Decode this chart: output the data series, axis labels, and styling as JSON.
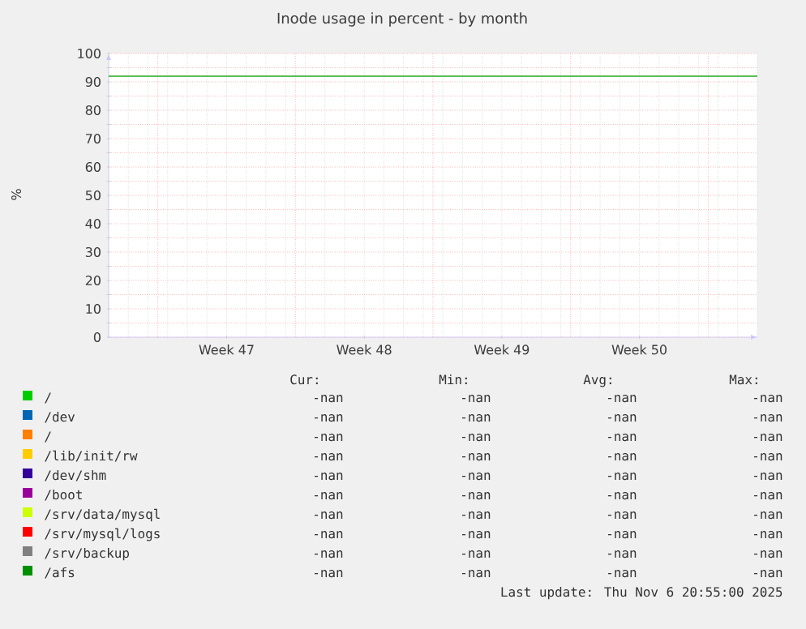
{
  "chart_data": {
    "type": "line",
    "title": "Inode usage in percent - by month",
    "ylabel": "%",
    "categories": [
      null,
      null,
      null,
      null,
      null,
      null,
      "Week 47",
      null,
      null,
      null,
      null,
      null,
      null,
      "Week 48",
      null,
      null,
      null,
      null,
      null,
      null,
      "Week 49",
      null,
      null,
      null,
      null,
      null,
      null,
      "Week 50",
      null,
      null,
      null,
      null,
      null,
      null
    ],
    "ylim": [
      0,
      100
    ],
    "yticks": [
      0,
      10,
      20,
      30,
      40,
      50,
      60,
      70,
      80,
      90,
      100
    ],
    "grid": true,
    "legend": "bottom",
    "ref_lines": [
      {
        "axis": "y",
        "value": 92,
        "color": "#22aa22"
      }
    ],
    "annotations": [
      "Cur:",
      "Min:",
      "Avg:",
      "Max:",
      "-nan",
      "-nan",
      "-nan",
      "-nan",
      "-nan",
      "-nan",
      "-nan",
      "-nan",
      "-nan",
      "-nan",
      "-nan",
      "-nan",
      "-nan",
      "-nan",
      "-nan",
      "-nan",
      "-nan",
      "-nan",
      "-nan",
      "-nan",
      "-nan",
      "-nan",
      "-nan",
      "-nan",
      "-nan",
      "-nan",
      "-nan",
      "-nan",
      "-nan",
      "-nan",
      "-nan",
      "-nan",
      "-nan",
      "-nan",
      "-nan",
      "-nan",
      "-nan",
      "-nan",
      "-nan",
      "-nan",
      "Last update:  Thu Nov  6 20:55:00 2025"
    ],
    "series": [
      {
        "name": "/",
        "color": "#00cc00",
        "values": [
          null,
          null,
          null,
          null,
          null,
          null,
          null,
          null,
          null,
          null,
          null,
          null,
          null,
          null,
          null,
          null,
          null,
          null,
          null,
          null,
          null,
          null,
          null,
          null,
          null,
          null,
          null,
          null,
          null,
          null,
          null,
          null,
          null,
          null
        ]
      },
      {
        "name": "/dev",
        "color": "#0066b3",
        "values": [
          null,
          null,
          null,
          null,
          null,
          null,
          null,
          null,
          null,
          null,
          null,
          null,
          null,
          null,
          null,
          null,
          null,
          null,
          null,
          null,
          null,
          null,
          null,
          null,
          null,
          null,
          null,
          null,
          null,
          null,
          null,
          null,
          null,
          null
        ]
      },
      {
        "name": "/",
        "color": "#ff8000",
        "values": [
          null,
          null,
          null,
          null,
          null,
          null,
          null,
          null,
          null,
          null,
          null,
          null,
          null,
          null,
          null,
          null,
          null,
          null,
          null,
          null,
          null,
          null,
          null,
          null,
          null,
          null,
          null,
          null,
          null,
          null,
          null,
          null,
          null,
          null
        ]
      },
      {
        "name": "/lib/init/rw",
        "color": "#ffcc00",
        "values": [
          null,
          null,
          null,
          null,
          null,
          null,
          null,
          null,
          null,
          null,
          null,
          null,
          null,
          null,
          null,
          null,
          null,
          null,
          null,
          null,
          null,
          null,
          null,
          null,
          null,
          null,
          null,
          null,
          null,
          null,
          null,
          null,
          null,
          null
        ]
      },
      {
        "name": "/dev/shm",
        "color": "#330099",
        "values": [
          null,
          null,
          null,
          null,
          null,
          null,
          null,
          null,
          null,
          null,
          null,
          null,
          null,
          null,
          null,
          null,
          null,
          null,
          null,
          null,
          null,
          null,
          null,
          null,
          null,
          null,
          null,
          null,
          null,
          null,
          null,
          null,
          null,
          null
        ]
      },
      {
        "name": "/boot",
        "color": "#990099",
        "values": [
          null,
          null,
          null,
          null,
          null,
          null,
          null,
          null,
          null,
          null,
          null,
          null,
          null,
          null,
          null,
          null,
          null,
          null,
          null,
          null,
          null,
          null,
          null,
          null,
          null,
          null,
          null,
          null,
          null,
          null,
          null,
          null,
          null,
          null
        ]
      },
      {
        "name": "/srv/data/mysql",
        "color": "#ccff00",
        "values": [
          null,
          null,
          null,
          null,
          null,
          null,
          null,
          null,
          null,
          null,
          null,
          null,
          null,
          null,
          null,
          null,
          null,
          null,
          null,
          null,
          null,
          null,
          null,
          null,
          null,
          null,
          null,
          null,
          null,
          null,
          null,
          null,
          null,
          null
        ]
      },
      {
        "name": "/srv/mysql/logs",
        "color": "#ff0000",
        "values": [
          null,
          null,
          null,
          null,
          null,
          null,
          null,
          null,
          null,
          null,
          null,
          null,
          null,
          null,
          null,
          null,
          null,
          null,
          null,
          null,
          null,
          null,
          null,
          null,
          null,
          null,
          null,
          null,
          null,
          null,
          null,
          null,
          null,
          null
        ]
      },
      {
        "name": "/srv/backup",
        "color": "#808080",
        "values": [
          null,
          null,
          null,
          null,
          null,
          null,
          null,
          null,
          null,
          null,
          null,
          null,
          null,
          null,
          null,
          null,
          null,
          null,
          null,
          null,
          null,
          null,
          null,
          null,
          null,
          null,
          null,
          null,
          null,
          null,
          null,
          null,
          null,
          null
        ]
      },
      {
        "name": "/afs",
        "color": "#008f00",
        "values": [
          null,
          null,
          null,
          null,
          null,
          null,
          null,
          null,
          null,
          null,
          null,
          null,
          null,
          null,
          null,
          null,
          null,
          null,
          null,
          null,
          null,
          null,
          null,
          null,
          null,
          null,
          null,
          null,
          null,
          null,
          null,
          null,
          null,
          null
        ]
      }
    ]
  }
}
